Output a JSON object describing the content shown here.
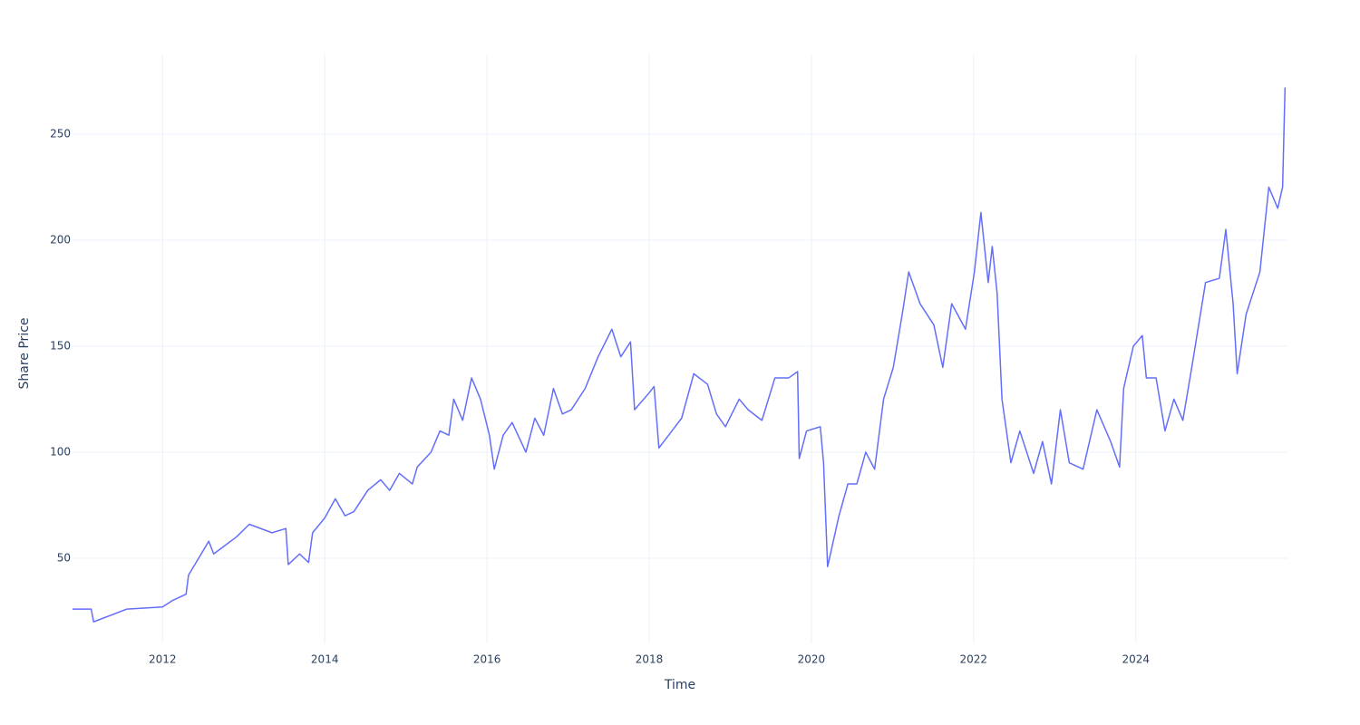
{
  "chart_data": {
    "type": "line",
    "x_label": "Time",
    "y_label": "Share Price",
    "x": [
      2010.89,
      2011.12,
      2011.15,
      2011.56,
      2012.0,
      2012.12,
      2012.29,
      2012.32,
      2012.57,
      2012.63,
      2012.91,
      2013.07,
      2013.35,
      2013.52,
      2013.55,
      2013.69,
      2013.8,
      2013.85,
      2014.0,
      2014.13,
      2014.25,
      2014.36,
      2014.53,
      2014.69,
      2014.8,
      2014.92,
      2015.08,
      2015.14,
      2015.31,
      2015.42,
      2015.53,
      2015.59,
      2015.7,
      2015.81,
      2015.92,
      2016.03,
      2016.09,
      2016.2,
      2016.31,
      2016.48,
      2016.59,
      2016.7,
      2016.82,
      2016.93,
      2017.04,
      2017.21,
      2017.37,
      2017.54,
      2017.65,
      2017.77,
      2017.82,
      2018.0,
      2018.06,
      2018.12,
      2018.28,
      2018.4,
      2018.55,
      2018.72,
      2018.83,
      2018.94,
      2019.11,
      2019.22,
      2019.39,
      2019.55,
      2019.72,
      2019.83,
      2019.85,
      2019.94,
      2020.11,
      2020.15,
      2020.2,
      2020.34,
      2020.45,
      2020.56,
      2020.67,
      2020.78,
      2020.89,
      2021.01,
      2021.12,
      2021.2,
      2021.34,
      2021.51,
      2021.62,
      2021.73,
      2021.9,
      2022.01,
      2022.09,
      2022.18,
      2022.23,
      2022.29,
      2022.35,
      2022.46,
      2022.57,
      2022.74,
      2022.85,
      2022.96,
      2023.07,
      2023.18,
      2023.35,
      2023.52,
      2023.69,
      2023.8,
      2023.85,
      2023.97,
      2024.08,
      2024.13,
      2024.25,
      2024.36,
      2024.47,
      2024.58,
      2024.69,
      2024.86,
      2025.03,
      2025.11,
      2025.2,
      2025.25,
      2025.36,
      2025.53,
      2025.64,
      2025.75,
      2025.81,
      2025.84
    ],
    "values": [
      26,
      26,
      20,
      26,
      27,
      30,
      33,
      42,
      58,
      52,
      60,
      66,
      62,
      64,
      47,
      52,
      48,
      62,
      69,
      78,
      70,
      72,
      82,
      87,
      82,
      90,
      85,
      93,
      100,
      110,
      108,
      125,
      115,
      135,
      125,
      108,
      92,
      108,
      114,
      100,
      116,
      108,
      130,
      118,
      120,
      130,
      145,
      158,
      145,
      152,
      120,
      128,
      131,
      102,
      110,
      116,
      137,
      132,
      118,
      112,
      125,
      120,
      115,
      135,
      135,
      138,
      97,
      110,
      112,
      95,
      46,
      70,
      85,
      85,
      100,
      92,
      125,
      140,
      165,
      185,
      170,
      160,
      140,
      170,
      158,
      185,
      213,
      180,
      197,
      175,
      125,
      95,
      110,
      90,
      105,
      85,
      120,
      95,
      92,
      120,
      105,
      93,
      130,
      150,
      155,
      135,
      135,
      110,
      125,
      115,
      140,
      180,
      182,
      205,
      170,
      137,
      165,
      185,
      225,
      215,
      225,
      272
    ],
    "color": "#636efa",
    "xlim": [
      2010.89,
      2025.87
    ],
    "xticks": [
      2012,
      2014,
      2016,
      2018,
      2020,
      2022,
      2024
    ],
    "ylim": [
      9.8,
      287.6
    ],
    "yticks": [
      50,
      100,
      150,
      200,
      250
    ],
    "grid": true
  }
}
